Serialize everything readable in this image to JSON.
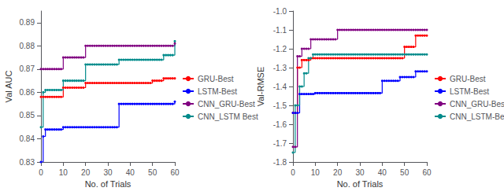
{
  "chart_data": [
    {
      "type": "step",
      "xlabel": "No. of Trials",
      "ylabel": "Val AUC",
      "x": [
        0,
        1,
        2,
        3,
        4,
        5,
        6,
        7,
        8,
        9,
        10,
        11,
        12,
        13,
        14,
        15,
        16,
        17,
        18,
        19,
        20,
        21,
        22,
        23,
        24,
        25,
        26,
        27,
        28,
        29,
        30,
        31,
        32,
        33,
        34,
        35,
        36,
        37,
        38,
        39,
        40,
        41,
        42,
        43,
        44,
        45,
        46,
        47,
        48,
        49,
        50,
        51,
        52,
        53,
        54,
        55,
        56,
        57,
        58,
        59,
        60
      ],
      "xlim": [
        0,
        60
      ],
      "xticks": [
        0,
        10,
        20,
        30,
        40,
        50,
        60
      ],
      "ylim": [
        0.83,
        0.895
      ],
      "yticks": [
        0.83,
        0.84,
        0.85,
        0.86,
        0.87,
        0.88,
        0.89
      ],
      "grid": false,
      "legend": "right",
      "marker": "dot",
      "series": [
        {
          "name": "GRU-Best",
          "color": "#FF0000",
          "values": [
            0.858,
            0.858,
            0.858,
            0.858,
            0.858,
            0.858,
            0.858,
            0.858,
            0.858,
            0.858,
            0.862,
            0.862,
            0.862,
            0.862,
            0.862,
            0.862,
            0.862,
            0.862,
            0.862,
            0.862,
            0.864,
            0.864,
            0.864,
            0.864,
            0.864,
            0.864,
            0.864,
            0.864,
            0.864,
            0.864,
            0.864,
            0.864,
            0.864,
            0.864,
            0.864,
            0.864,
            0.864,
            0.864,
            0.864,
            0.864,
            0.864,
            0.864,
            0.864,
            0.864,
            0.864,
            0.864,
            0.864,
            0.864,
            0.864,
            0.864,
            0.865,
            0.865,
            0.865,
            0.865,
            0.865,
            0.866,
            0.866,
            0.866,
            0.866,
            0.866,
            0.866
          ]
        },
        {
          "name": "LSTM-Best",
          "color": "#0000FF",
          "values": [
            0.83,
            0.841,
            0.844,
            0.844,
            0.844,
            0.844,
            0.844,
            0.844,
            0.844,
            0.844,
            0.845,
            0.845,
            0.845,
            0.845,
            0.845,
            0.845,
            0.845,
            0.845,
            0.845,
            0.845,
            0.845,
            0.845,
            0.845,
            0.845,
            0.845,
            0.845,
            0.845,
            0.845,
            0.845,
            0.845,
            0.845,
            0.845,
            0.845,
            0.845,
            0.845,
            0.855,
            0.855,
            0.855,
            0.855,
            0.855,
            0.855,
            0.855,
            0.855,
            0.855,
            0.855,
            0.855,
            0.855,
            0.855,
            0.855,
            0.855,
            0.855,
            0.855,
            0.855,
            0.855,
            0.855,
            0.855,
            0.855,
            0.855,
            0.855,
            0.855,
            0.856
          ]
        },
        {
          "name": "CNN_GRU-Best",
          "color": "#800080",
          "values": [
            0.87,
            0.87,
            0.87,
            0.87,
            0.87,
            0.87,
            0.87,
            0.87,
            0.87,
            0.87,
            0.875,
            0.875,
            0.875,
            0.875,
            0.875,
            0.875,
            0.875,
            0.875,
            0.875,
            0.875,
            0.88,
            0.88,
            0.88,
            0.88,
            0.88,
            0.88,
            0.88,
            0.88,
            0.88,
            0.88,
            0.88,
            0.88,
            0.88,
            0.88,
            0.88,
            0.88,
            0.88,
            0.88,
            0.88,
            0.88,
            0.88,
            0.88,
            0.88,
            0.88,
            0.88,
            0.88,
            0.88,
            0.88,
            0.88,
            0.88,
            0.88,
            0.88,
            0.88,
            0.88,
            0.88,
            0.88,
            0.88,
            0.88,
            0.88,
            0.88,
            0.881
          ]
        },
        {
          "name": "CNN_LSTM Best",
          "color": "#008B8B",
          "values": [
            0.845,
            0.86,
            0.861,
            0.861,
            0.861,
            0.861,
            0.861,
            0.861,
            0.861,
            0.861,
            0.865,
            0.865,
            0.865,
            0.865,
            0.865,
            0.865,
            0.865,
            0.865,
            0.865,
            0.865,
            0.872,
            0.872,
            0.872,
            0.872,
            0.872,
            0.872,
            0.872,
            0.872,
            0.872,
            0.872,
            0.872,
            0.872,
            0.872,
            0.872,
            0.872,
            0.874,
            0.874,
            0.874,
            0.874,
            0.874,
            0.874,
            0.874,
            0.874,
            0.874,
            0.874,
            0.874,
            0.874,
            0.874,
            0.874,
            0.874,
            0.874,
            0.874,
            0.874,
            0.874,
            0.874,
            0.876,
            0.876,
            0.876,
            0.876,
            0.876,
            0.882
          ]
        }
      ]
    },
    {
      "type": "step",
      "xlabel": "No. of Trials",
      "ylabel": "Val-RMSE",
      "x": [
        0,
        1,
        2,
        3,
        4,
        5,
        6,
        7,
        8,
        9,
        10,
        11,
        12,
        13,
        14,
        15,
        16,
        17,
        18,
        19,
        20,
        21,
        22,
        23,
        24,
        25,
        26,
        27,
        28,
        29,
        30,
        31,
        32,
        33,
        34,
        35,
        36,
        37,
        38,
        39,
        40,
        41,
        42,
        43,
        44,
        45,
        46,
        47,
        48,
        49,
        50,
        51,
        52,
        53,
        54,
        55,
        56,
        57,
        58,
        59,
        60
      ],
      "xlim": [
        0,
        60
      ],
      "xticks": [
        0,
        10,
        20,
        30,
        40,
        50,
        60
      ],
      "ylim": [
        -1.8,
        -1.0
      ],
      "yticks": [
        -1.8,
        -1.7,
        -1.6,
        -1.5,
        -1.4,
        -1.3,
        -1.2,
        -1.1,
        {
          "value": -1.0,
          "label": "-1.0"
        }
      ],
      "grid": false,
      "legend": "right",
      "marker": "dot",
      "series": [
        {
          "name": "GRU-Best",
          "color": "#FF0000",
          "values": [
            -1.54,
            -1.54,
            -1.3,
            -1.3,
            -1.26,
            -1.26,
            -1.26,
            -1.26,
            -1.25,
            -1.25,
            -1.25,
            -1.25,
            -1.25,
            -1.25,
            -1.25,
            -1.25,
            -1.25,
            -1.25,
            -1.25,
            -1.25,
            -1.25,
            -1.25,
            -1.25,
            -1.25,
            -1.25,
            -1.25,
            -1.25,
            -1.25,
            -1.25,
            -1.25,
            -1.25,
            -1.25,
            -1.25,
            -1.25,
            -1.25,
            -1.25,
            -1.25,
            -1.25,
            -1.25,
            -1.25,
            -1.25,
            -1.25,
            -1.25,
            -1.25,
            -1.25,
            -1.25,
            -1.25,
            -1.25,
            -1.25,
            -1.25,
            -1.19,
            -1.19,
            -1.19,
            -1.19,
            -1.19,
            -1.13,
            -1.13,
            -1.13,
            -1.13,
            -1.13,
            -1.13
          ]
        },
        {
          "name": "LSTM-Best",
          "color": "#0000FF",
          "values": [
            -1.54,
            -1.54,
            -1.54,
            -1.44,
            -1.44,
            -1.44,
            -1.44,
            -1.44,
            -1.44,
            -1.44,
            -1.435,
            -1.435,
            -1.435,
            -1.435,
            -1.435,
            -1.435,
            -1.435,
            -1.435,
            -1.435,
            -1.435,
            -1.435,
            -1.435,
            -1.435,
            -1.435,
            -1.435,
            -1.435,
            -1.435,
            -1.435,
            -1.435,
            -1.435,
            -1.435,
            -1.435,
            -1.435,
            -1.435,
            -1.435,
            -1.435,
            -1.435,
            -1.435,
            -1.435,
            -1.435,
            -1.37,
            -1.37,
            -1.37,
            -1.37,
            -1.37,
            -1.37,
            -1.37,
            -1.37,
            -1.35,
            -1.35,
            -1.35,
            -1.35,
            -1.35,
            -1.35,
            -1.35,
            -1.32,
            -1.32,
            -1.32,
            -1.32,
            -1.32,
            -1.32
          ]
        },
        {
          "name": "CNN_GRU-Best",
          "color": "#800080",
          "values": [
            -1.72,
            -1.72,
            -1.24,
            -1.24,
            -1.2,
            -1.2,
            -1.2,
            -1.2,
            -1.15,
            -1.15,
            -1.15,
            -1.15,
            -1.15,
            -1.15,
            -1.15,
            -1.15,
            -1.15,
            -1.15,
            -1.15,
            -1.15,
            -1.1,
            -1.1,
            -1.1,
            -1.1,
            -1.1,
            -1.1,
            -1.1,
            -1.1,
            -1.1,
            -1.1,
            -1.1,
            -1.1,
            -1.1,
            -1.1,
            -1.1,
            -1.1,
            -1.1,
            -1.1,
            -1.1,
            -1.1,
            -1.1,
            -1.1,
            -1.1,
            -1.1,
            -1.1,
            -1.1,
            -1.1,
            -1.1,
            -1.1,
            -1.1,
            -1.1,
            -1.1,
            -1.1,
            -1.1,
            -1.1,
            -1.1,
            -1.1,
            -1.1,
            -1.1,
            -1.1,
            -1.1
          ]
        },
        {
          "name": "CNN_LSTM-Best",
          "color": "#008B8B",
          "values": [
            -1.75,
            -1.5,
            -1.5,
            -1.4,
            -1.4,
            -1.33,
            -1.33,
            -1.25,
            -1.25,
            -1.23,
            -1.23,
            -1.23,
            -1.23,
            -1.23,
            -1.23,
            -1.23,
            -1.23,
            -1.23,
            -1.23,
            -1.23,
            -1.23,
            -1.23,
            -1.23,
            -1.23,
            -1.23,
            -1.23,
            -1.23,
            -1.23,
            -1.23,
            -1.23,
            -1.23,
            -1.23,
            -1.23,
            -1.23,
            -1.23,
            -1.23,
            -1.23,
            -1.23,
            -1.23,
            -1.23,
            -1.23,
            -1.23,
            -1.23,
            -1.23,
            -1.23,
            -1.23,
            -1.23,
            -1.23,
            -1.23,
            -1.23,
            -1.23,
            -1.23,
            -1.23,
            -1.23,
            -1.23,
            -1.23,
            -1.23,
            -1.23,
            -1.23,
            -1.23,
            -1.23
          ]
        }
      ]
    }
  ]
}
